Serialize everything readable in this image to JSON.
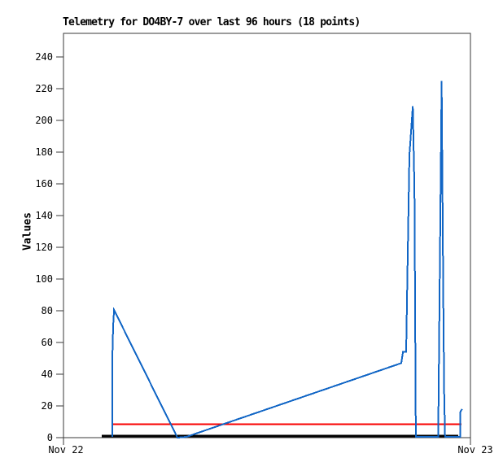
{
  "chart_data": {
    "type": "line",
    "title": "Telemetry for DO4BY-7 over last 96 hours (18 points)",
    "ylabel": "Values",
    "xlabel": "",
    "background_color": "#ffffff",
    "frame_color": "#3a3a3a",
    "tick_color": "#3a3a3a",
    "text_color": "#000000",
    "grid": false,
    "legend": "none",
    "ylim": [
      0,
      255
    ],
    "y_ticks": [
      0,
      20,
      40,
      60,
      80,
      100,
      120,
      140,
      160,
      180,
      200,
      220,
      240
    ],
    "x_axis": {
      "unit": "hours-of-day",
      "range": [
        0,
        24
      ],
      "tick_positions": [
        0,
        24
      ],
      "tick_labels": [
        "Nov 22",
        "Nov 23"
      ]
    },
    "series": [
      {
        "name": "black-baseline-series",
        "color": "#000000",
        "stroke_width": 3,
        "points": [
          [
            2.26,
            1
          ],
          [
            23.28,
            1
          ]
        ]
      },
      {
        "name": "red-constant-series",
        "color": "#f80000",
        "stroke_width": 2,
        "points": [
          [
            2.93,
            8.5
          ],
          [
            23.47,
            8.5
          ]
        ]
      },
      {
        "name": "blue-telemetry-series",
        "color": "#1065c5",
        "stroke_width": 2,
        "points": [
          [
            2.88,
            0.5
          ],
          [
            2.88,
            50
          ],
          [
            2.93,
            70
          ],
          [
            2.98,
            80.5
          ],
          [
            6.72,
            0
          ],
          [
            7.25,
            0.5
          ],
          [
            19.92,
            47
          ],
          [
            20.02,
            54
          ],
          [
            20.21,
            54
          ],
          [
            20.4,
            178
          ],
          [
            20.6,
            209
          ],
          [
            20.7,
            156
          ],
          [
            20.78,
            0.5
          ],
          [
            22.1,
            0.5
          ],
          [
            22.2,
            113
          ],
          [
            22.3,
            225
          ],
          [
            22.4,
            85
          ],
          [
            22.45,
            29
          ],
          [
            22.5,
            0.5
          ],
          [
            23.3,
            0.5
          ],
          [
            23.4,
            0.5
          ],
          [
            23.4,
            16
          ],
          [
            23.5,
            18
          ]
        ]
      }
    ]
  }
}
